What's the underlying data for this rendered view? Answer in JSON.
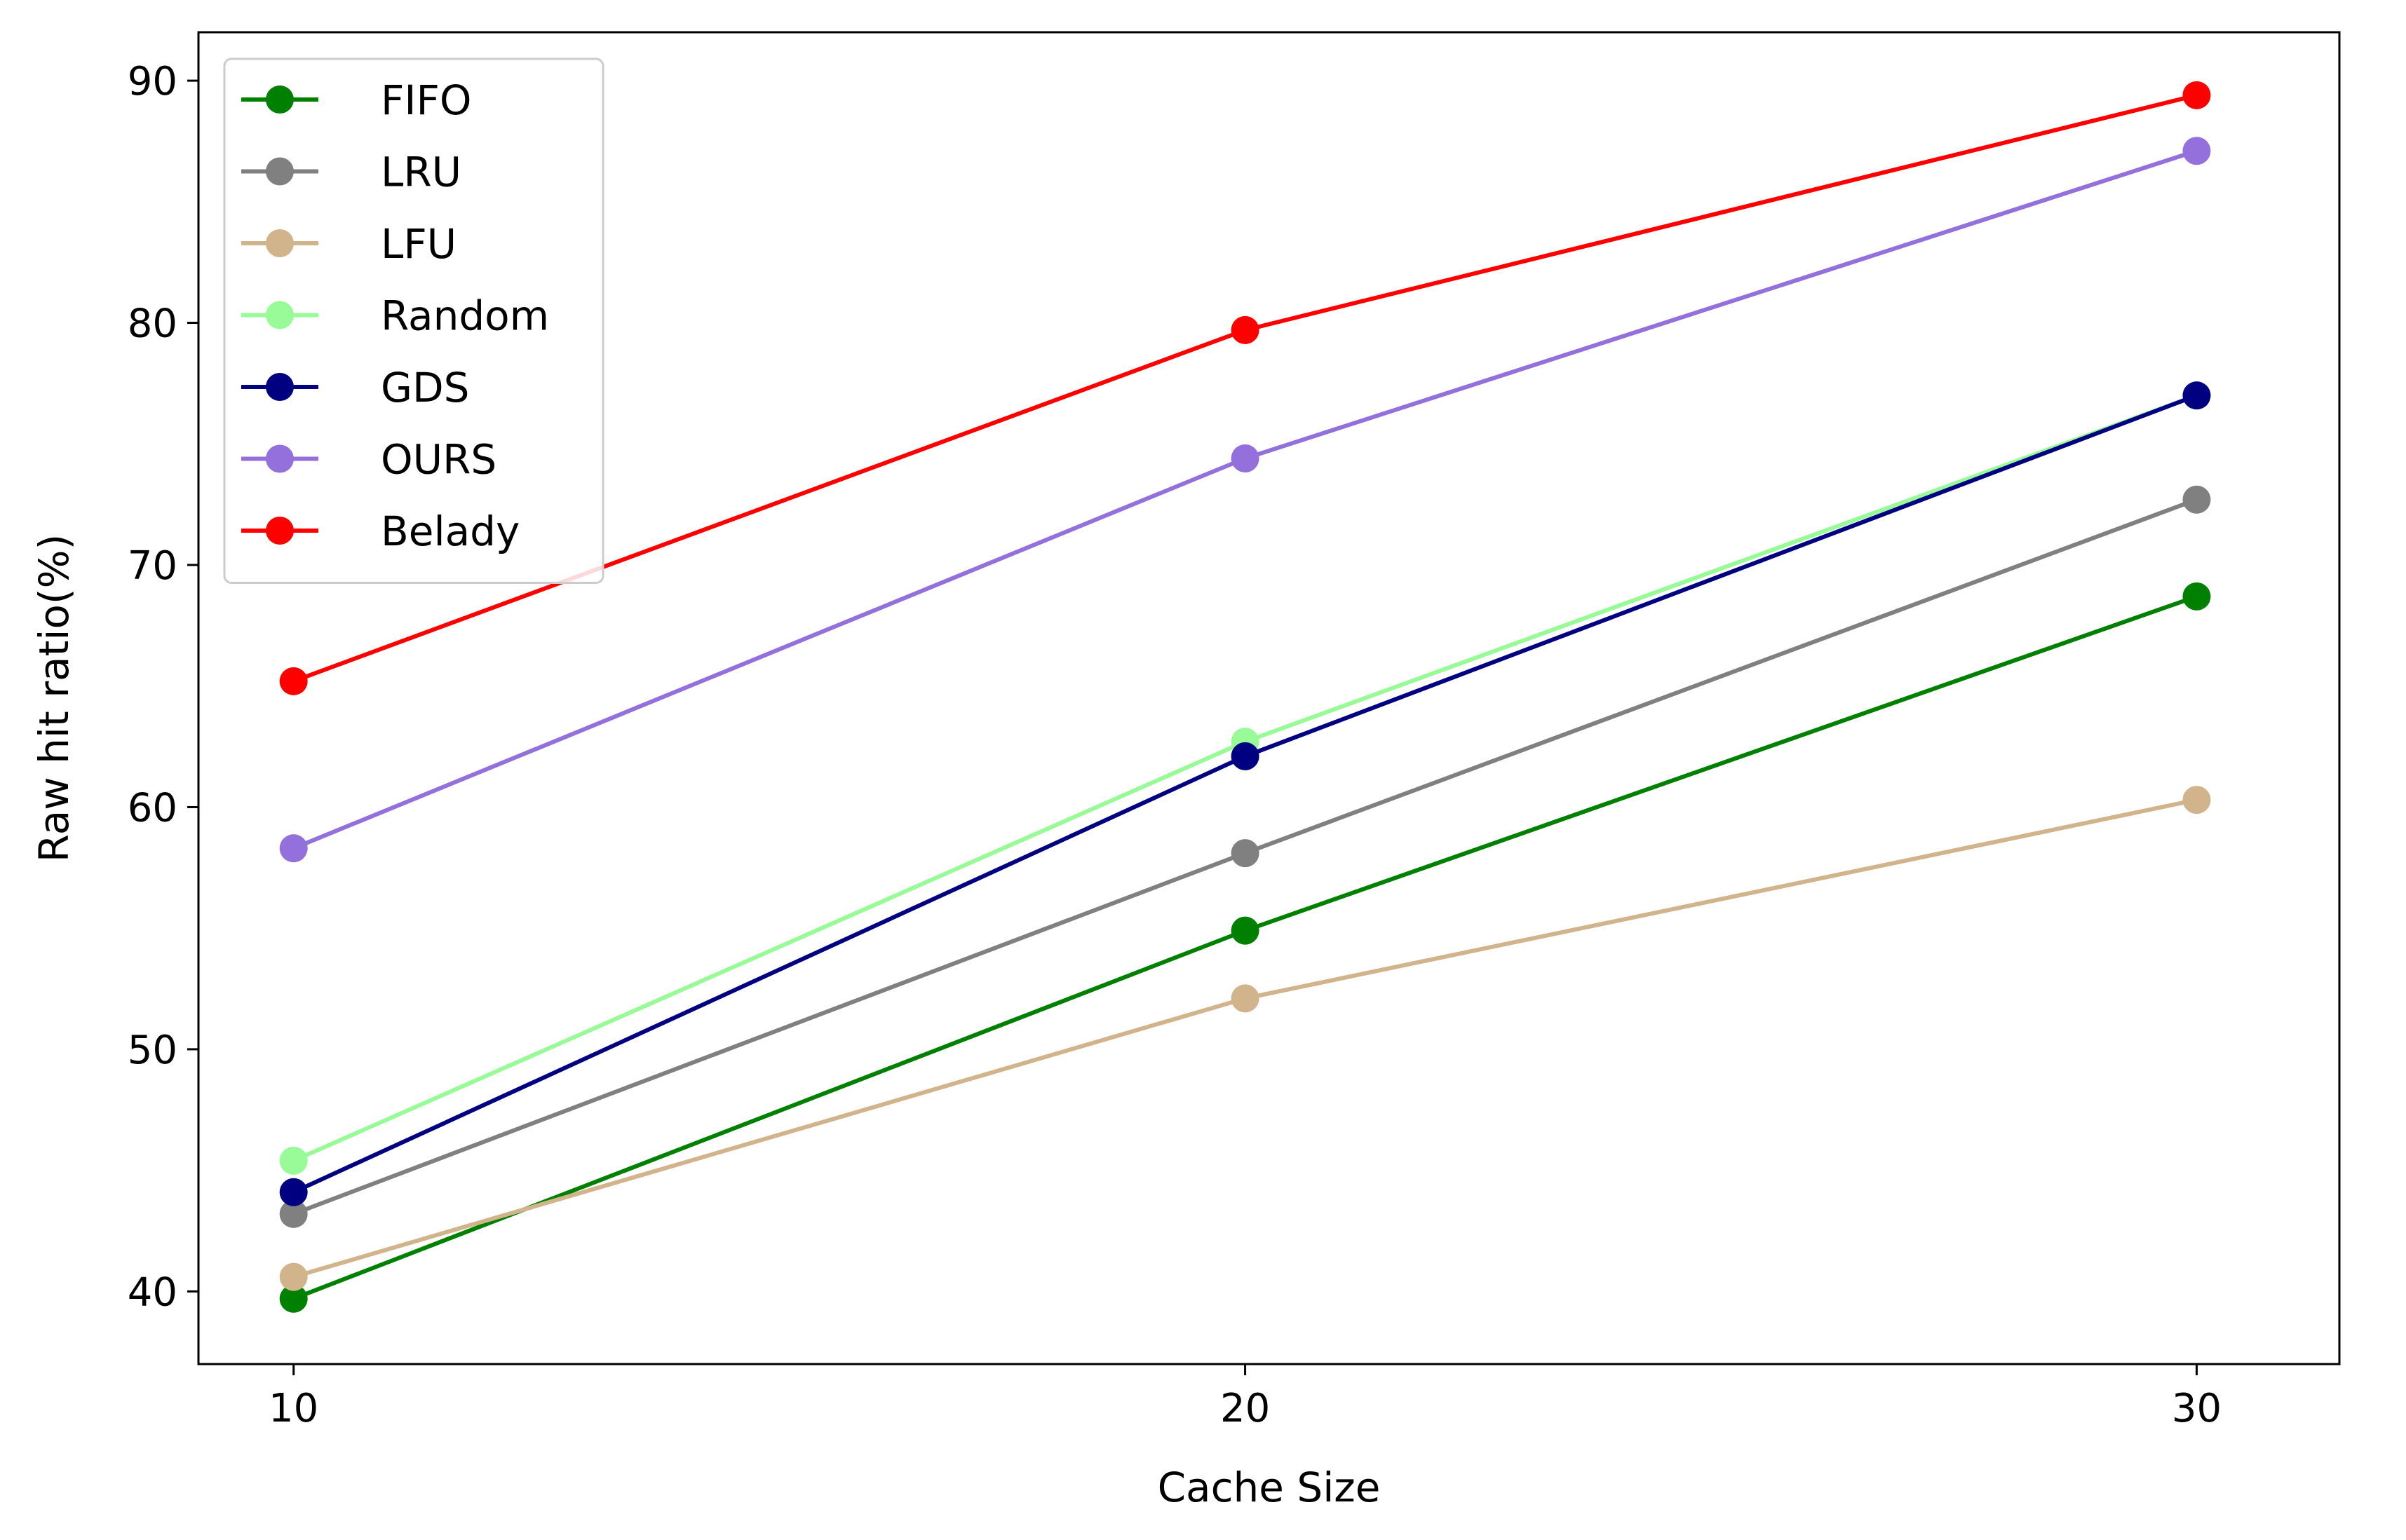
{
  "chart_data": {
    "type": "line",
    "title": "",
    "xlabel": "Cache Size",
    "ylabel": "Raw hit ratio(%)",
    "x": [
      10,
      20,
      30
    ],
    "x_ticks": [
      "10",
      "20",
      "30"
    ],
    "xlim": [
      9,
      31.5
    ],
    "y_ticks": [
      "40",
      "50",
      "60",
      "70",
      "80",
      "90"
    ],
    "ylim": [
      37,
      92
    ],
    "grid": false,
    "legend_position": "top-left",
    "series": [
      {
        "name": "FIFO",
        "color": "#008000",
        "values": [
          39.7,
          54.9,
          68.7
        ]
      },
      {
        "name": "LRU",
        "color": "#808080",
        "values": [
          43.2,
          58.1,
          72.7
        ]
      },
      {
        "name": "LFU",
        "color": "#d2b48c",
        "values": [
          40.6,
          52.1,
          60.3
        ]
      },
      {
        "name": "Random",
        "color": "#98fb98",
        "values": [
          45.4,
          62.7,
          77.0
        ]
      },
      {
        "name": "GDS",
        "color": "#000080",
        "values": [
          44.1,
          62.1,
          77.0
        ]
      },
      {
        "name": "OURS",
        "color": "#9370db",
        "values": [
          58.3,
          74.4,
          87.1
        ]
      },
      {
        "name": "Belady",
        "color": "#ff0000",
        "values": [
          65.2,
          79.7,
          89.4
        ]
      }
    ]
  }
}
